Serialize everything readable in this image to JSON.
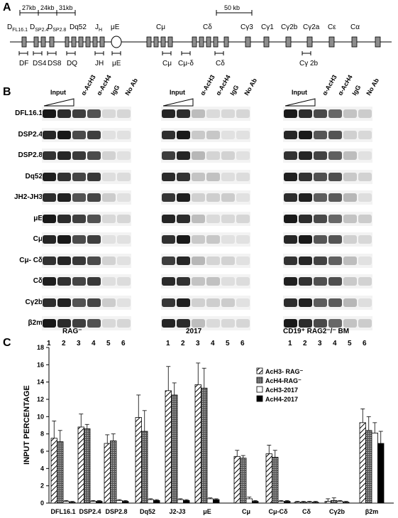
{
  "panels": {
    "a": "A",
    "b": "B",
    "c": "C"
  },
  "map": {
    "scales": [
      "27kb",
      "24kb",
      "31kb",
      "50 kb"
    ],
    "genes": [
      {
        "id": "dfl",
        "text": "D",
        "sub": "FL16.1"
      },
      {
        "id": "dsp24",
        "text": "D",
        "sub": "SP2.4"
      },
      {
        "id": "dsp28",
        "text": "D",
        "sub": "SP2.8"
      },
      {
        "id": "dq52",
        "text": "Dq52",
        "sub": ""
      },
      {
        "id": "jh",
        "text": "J",
        "sub": "H"
      },
      {
        "id": "mue",
        "text": "μE",
        "sub": ""
      },
      {
        "id": "cmu",
        "text": "Cμ",
        "sub": ""
      },
      {
        "id": "cdelta",
        "text": "Cδ",
        "sub": ""
      },
      {
        "id": "cg3",
        "text": "Cγ3",
        "sub": ""
      },
      {
        "id": "cg1",
        "text": "Cγ1",
        "sub": ""
      },
      {
        "id": "cg2b",
        "text": "Cγ2b",
        "sub": ""
      },
      {
        "id": "cg2a",
        "text": "Cγ2a",
        "sub": ""
      },
      {
        "id": "ce",
        "text": "Cε",
        "sub": ""
      },
      {
        "id": "ca",
        "text": "Cα",
        "sub": ""
      }
    ],
    "probes": [
      "DF",
      "DS4",
      "DS8",
      "DQ",
      "JH",
      "μE",
      "Cμ",
      "Cμ-δ",
      "Cδ",
      "Cγ 2b"
    ]
  },
  "gels": {
    "column_headers": [
      "Input",
      "α-AcH3",
      "α-AcH4",
      "IgG",
      "No Ab"
    ],
    "row_labels": [
      "DFL16.1",
      "DSP2.4",
      "DSP2.8",
      "Dq52",
      "JH2-JH3",
      "μE",
      "Cμ",
      "Cμ- Cδ",
      "Cδ",
      "Cγ2b",
      "β2m"
    ],
    "lanes": [
      "1",
      "2",
      "3",
      "4",
      "5",
      "6"
    ],
    "titles": [
      "RAG⁻",
      "2017",
      "CD19⁺ RAG2⁻/⁻ BM"
    ]
  },
  "chart_data": {
    "type": "bar",
    "ylabel": "INPUT PERCENTAGE",
    "ylim": [
      0,
      18
    ],
    "yticks": [
      0,
      2,
      4,
      6,
      8,
      10,
      12,
      14,
      16,
      18
    ],
    "categories": [
      "DFL16.1",
      "DSP2.4",
      "DSP2.8",
      "Dq52",
      "J2-J3",
      "μE",
      "Cμ",
      "Cμ-Cδ",
      "Cδ",
      "Cγ2b",
      "β2m"
    ],
    "series": [
      {
        "name": "AcH3- RAG⁻",
        "values": [
          7.5,
          8.8,
          6.9,
          9.9,
          13.0,
          13.7,
          5.4,
          5.7,
          0.1,
          0.2,
          9.3
        ],
        "errors": [
          2.0,
          1.5,
          1.0,
          2.6,
          2.8,
          2.5,
          0.7,
          1.0,
          0.1,
          0.3,
          1.6
        ]
      },
      {
        "name": "AcH4-RAG⁻",
        "values": [
          7.1,
          8.6,
          7.2,
          8.3,
          12.5,
          13.3,
          5.2,
          5.3,
          0.1,
          0.3,
          8.4
        ],
        "errors": [
          1.3,
          0.5,
          0.8,
          2.4,
          1.4,
          2.3,
          0.3,
          0.8,
          0.1,
          0.3,
          1.6
        ]
      },
      {
        "name": "AcH3-2017",
        "values": [
          0.2,
          0.2,
          0.3,
          0.4,
          0.4,
          0.5,
          0.5,
          0.2,
          0.1,
          0.2,
          8.1
        ],
        "errors": [
          0.1,
          0.1,
          0.1,
          0.1,
          0.1,
          0.1,
          0.2,
          0.1,
          0.1,
          0.1,
          1.2
        ]
      },
      {
        "name": "AcH4-2017",
        "values": [
          0.1,
          0.2,
          0.2,
          0.3,
          0.3,
          0.4,
          0.2,
          0.2,
          0.1,
          0.1,
          6.9
        ],
        "errors": [
          0.1,
          0.1,
          0.1,
          0.1,
          0.1,
          0.1,
          0.1,
          0.1,
          0.1,
          0.1,
          1.4
        ]
      }
    ]
  }
}
